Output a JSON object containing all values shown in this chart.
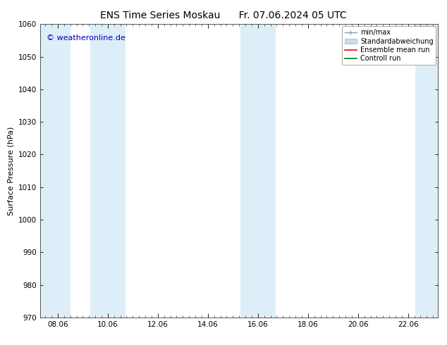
{
  "title_left": "ENS Time Series Moskau",
  "title_right": "Fr. 07.06.2024 05 UTC",
  "ylabel": "Surface Pressure (hPa)",
  "ylim": [
    970,
    1060
  ],
  "yticks": [
    970,
    980,
    990,
    1000,
    1010,
    1020,
    1030,
    1040,
    1050,
    1060
  ],
  "xlim_start": 7.3,
  "xlim_end": 23.2,
  "xtick_labels": [
    "08.06",
    "10.06",
    "12.06",
    "14.06",
    "16.06",
    "18.06",
    "20.06",
    "22.06"
  ],
  "xtick_positions": [
    8.0,
    10.0,
    12.0,
    14.0,
    16.0,
    18.0,
    20.0,
    22.0
  ],
  "shaded_bands": [
    {
      "x_start": 7.3,
      "x_end": 8.5,
      "color": "#ddeef8"
    },
    {
      "x_start": 9.3,
      "x_end": 10.7,
      "color": "#ddeef8"
    },
    {
      "x_start": 15.3,
      "x_end": 16.7,
      "color": "#ddeef8"
    },
    {
      "x_start": 22.3,
      "x_end": 23.2,
      "color": "#ddeef8"
    }
  ],
  "watermark": "© weatheronline.de",
  "watermark_color": "#0000bb",
  "legend_items": [
    {
      "label": "min/max",
      "color": "#999999"
    },
    {
      "label": "Standardabweichung",
      "color": "#c8ddf0"
    },
    {
      "label": "Ensemble mean run",
      "color": "red"
    },
    {
      "label": "Controll run",
      "color": "green"
    }
  ],
  "bg_color": "#ffffff",
  "plot_bg_color": "#ffffff",
  "spine_color": "#555555",
  "tick_color": "#000000",
  "font_color": "#000000",
  "title_fontsize": 10,
  "label_fontsize": 8,
  "tick_fontsize": 7.5,
  "watermark_fontsize": 8
}
